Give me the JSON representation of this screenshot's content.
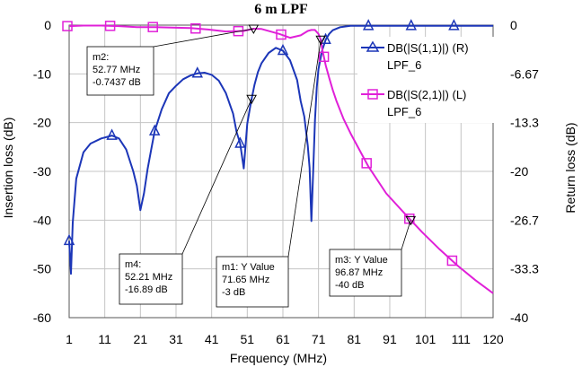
{
  "chart_data": {
    "type": "line",
    "title": "6 m LPF",
    "xlabel": "Frequency (MHz)",
    "ylabel_left": "Insertion loss (dB)",
    "ylabel_right": "Return loss (dB)",
    "xlim": [
      1,
      120
    ],
    "ylim_left": [
      -60,
      0
    ],
    "ylim_right": [
      -40,
      0
    ],
    "grid": true,
    "legend_placement": "top-right",
    "x_ticks": [
      "1",
      "11",
      "21",
      "31",
      "41",
      "51",
      "61",
      "71",
      "81",
      "91",
      "101",
      "111",
      "120"
    ],
    "y_left_ticks": [
      "0",
      "-10",
      "-20",
      "-30",
      "-40",
      "-50",
      "-60"
    ],
    "y_right_ticks": [
      "0",
      "-6.67",
      "-13.3",
      "-20",
      "-26.7",
      "-33.3",
      "-40"
    ],
    "series": [
      {
        "name": "DB(|S(1,1)|) (R) LPF_6",
        "legend_line1": "DB(|S(1,1)|) (R)",
        "legend_line2": "LPF_6",
        "axis": "right",
        "color": "#1c36b8",
        "marker": "triangle",
        "x": [
          1,
          1.5,
          2,
          3,
          5,
          7,
          10,
          13,
          15,
          17,
          19,
          20,
          21,
          22,
          23,
          24,
          25,
          27,
          29,
          31,
          33,
          35,
          37,
          39,
          41,
          43,
          45,
          47,
          48,
          49,
          50,
          51,
          52,
          53,
          54,
          55,
          57,
          59,
          61,
          63,
          65,
          66,
          67,
          68,
          68.5,
          69,
          69.5,
          70,
          70.5,
          71,
          72,
          73,
          74,
          75,
          77,
          80,
          85,
          90,
          100,
          110,
          120
        ],
        "values": [
          -29.5,
          -34,
          -27,
          -21,
          -17.4,
          -16.2,
          -15.5,
          -15.1,
          -15.5,
          -17,
          -20,
          -22,
          -25.3,
          -23,
          -19.7,
          -17.1,
          -14.5,
          -11.5,
          -9.3,
          -8.3,
          -7.4,
          -6.9,
          -6.6,
          -6.5,
          -6.8,
          -7.6,
          -9.3,
          -12.1,
          -14.6,
          -16.2,
          -19.6,
          -13.5,
          -10.6,
          -8.2,
          -6.4,
          -5.2,
          -3.8,
          -3.1,
          -3.5,
          -4.8,
          -7.5,
          -10.4,
          -12.5,
          -16.5,
          -19.5,
          -26.8,
          -20,
          -13,
          -8.5,
          -6,
          -3.5,
          -2,
          -1.2,
          -0.7,
          -0.3,
          -0.1,
          -0.1,
          -0.1,
          -0.1,
          -0.1,
          -0.1
        ]
      },
      {
        "name": "DB(|S(2,1)|) (L) LPF_6",
        "legend_line1": "DB(|S(2,1)|) (L)",
        "legend_line2": "LPF_6",
        "axis": "left",
        "color": "#e020d8",
        "marker": "square",
        "x": [
          1,
          5,
          10,
          15,
          20,
          25,
          30,
          35,
          40,
          45,
          50,
          52.77,
          55,
          60,
          63,
          66,
          68,
          69,
          70,
          71,
          71.65,
          72,
          73,
          74,
          75,
          76,
          78,
          80,
          85,
          90,
          96.87,
          100,
          105,
          110,
          115,
          120
        ],
        "values": [
          -0.2,
          -0.1,
          -0.1,
          -0.2,
          -0.4,
          -0.4,
          -0.5,
          -0.6,
          -0.9,
          -1.3,
          -1.2,
          -0.74,
          -0.8,
          -1.8,
          -2.6,
          -2.1,
          -1.2,
          -1,
          -1,
          -1.8,
          -3,
          -4.8,
          -8.2,
          -10.8,
          -13.3,
          -15.5,
          -19.2,
          -22.2,
          -29,
          -34.5,
          -40,
          -42.4,
          -46,
          -49.3,
          -52.3,
          -55
        ]
      }
    ],
    "markers": [
      {
        "id": "m1",
        "label_lines": [
          "m1: Y Value",
          "71.65 MHz",
          "-3 dB"
        ]
      },
      {
        "id": "m2",
        "label_lines": [
          "m2:",
          "52.77 MHz",
          "-0.7437 dB"
        ]
      },
      {
        "id": "m3",
        "label_lines": [
          "m3: Y Value",
          "96.87 MHz",
          "-40 dB"
        ]
      },
      {
        "id": "m4",
        "label_lines": [
          "m4:",
          "52.21 MHz",
          "-16.89 dB"
        ]
      }
    ]
  }
}
